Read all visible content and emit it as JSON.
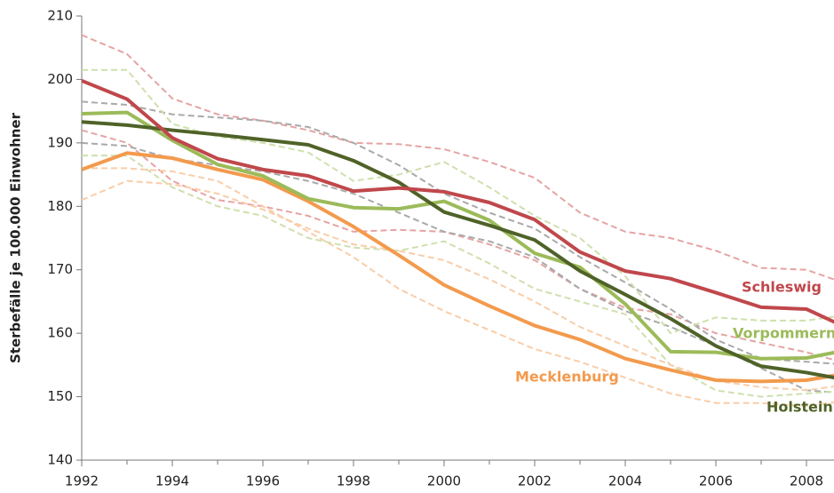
{
  "chart_data": {
    "type": "line",
    "y_label": "Sterbefälle je 100.000 Einwohner",
    "x": [
      1992,
      1993,
      1994,
      1995,
      1996,
      1997,
      1998,
      1999,
      2000,
      2001,
      2002,
      2003,
      2004,
      2005,
      2006,
      2007,
      2008,
      2009
    ],
    "xlim": [
      1992,
      2008.6
    ],
    "xticks": [
      1992,
      1994,
      1996,
      1998,
      2000,
      2002,
      2004,
      2006,
      2008
    ],
    "ylim": [
      140,
      210
    ],
    "yticks": [
      140,
      150,
      160,
      170,
      180,
      190,
      200,
      210
    ],
    "series": [
      {
        "color": "#e6a3a3",
        "dashed": true,
        "values": [
          207,
          204,
          197,
          194.5,
          193.5,
          192,
          190,
          189.8,
          189,
          187,
          184.5,
          179,
          176,
          175,
          173,
          170.3,
          170,
          167.5
        ]
      },
      {
        "color": "#e6a3a3",
        "dashed": true,
        "values": [
          192,
          190,
          184,
          181,
          180,
          178.5,
          176,
          176.3,
          176,
          174,
          171.5,
          167,
          164,
          163,
          160,
          158.5,
          157,
          155
        ]
      },
      {
        "color": "#a9a9a9",
        "dashed": true,
        "values": [
          196.5,
          196,
          194.5,
          194,
          193.5,
          192.5,
          190,
          186.5,
          182,
          179,
          176.5,
          172,
          168,
          163.8,
          159,
          156,
          155.5,
          155
        ]
      },
      {
        "color": "#a9a9a9",
        "dashed": true,
        "values": [
          190,
          189.5,
          187.5,
          186.5,
          185.5,
          184,
          182,
          179,
          176,
          174.5,
          172,
          167,
          163.5,
          161,
          158,
          154.5,
          151,
          150.5
        ]
      },
      {
        "color": "#cfe0ad",
        "dashed": true,
        "values": [
          201.5,
          201.5,
          193,
          191,
          190,
          188.5,
          184,
          185,
          187,
          183,
          178.5,
          175,
          169,
          160,
          162.5,
          162,
          162,
          163
        ]
      },
      {
        "color": "#cfe0ad",
        "dashed": true,
        "values": [
          188,
          188,
          183,
          180,
          178.5,
          175,
          173.5,
          173,
          174.5,
          171,
          167,
          165,
          163,
          155,
          151,
          150,
          150.5,
          151
        ]
      },
      {
        "color": "#f9cda8",
        "dashed": true,
        "values": [
          181,
          184,
          183.5,
          182,
          179.5,
          176.5,
          174,
          173,
          171.5,
          168.5,
          165,
          161,
          158,
          155,
          152.5,
          151.5,
          151,
          152
        ]
      },
      {
        "color": "#f9cda8",
        "dashed": true,
        "values": [
          186,
          186,
          185.5,
          184,
          180,
          176,
          172,
          167,
          163.5,
          160.5,
          157.5,
          155.5,
          153,
          150.5,
          149,
          149,
          148.5,
          149.5
        ]
      },
      {
        "name": "Mecklenburg",
        "color": "#f39a4d",
        "values": [
          185.8,
          188.4,
          187.6,
          185.8,
          184.2,
          180.8,
          176.8,
          172.3,
          167.6,
          164.3,
          161.2,
          159.0,
          156.0,
          154.2,
          152.6,
          152.4,
          152.6,
          153.8
        ]
      },
      {
        "name": "Vorpommern",
        "color": "#9bbb59",
        "values": [
          194.6,
          194.8,
          190.4,
          186.6,
          184.8,
          181.2,
          179.8,
          179.6,
          180.8,
          177.8,
          172.6,
          170.4,
          164.6,
          157.1,
          157.0,
          156.0,
          156.1,
          157.5
        ]
      },
      {
        "name": "Holstein",
        "color": "#4f6228",
        "values": [
          193.3,
          192.8,
          192.0,
          191.3,
          190.5,
          189.7,
          187.2,
          183.8,
          179.1,
          177.0,
          174.7,
          169.8,
          166.1,
          162.3,
          158.0,
          154.8,
          153.8,
          152.5
        ]
      },
      {
        "name": "Schleswig",
        "color": "#c0474b",
        "values": [
          199.8,
          196.9,
          190.8,
          187.5,
          185.8,
          184.8,
          182.4,
          182.9,
          182.3,
          180.6,
          177.9,
          172.8,
          169.8,
          168.6,
          166.4,
          164.1,
          163.8,
          160.5
        ]
      }
    ]
  }
}
